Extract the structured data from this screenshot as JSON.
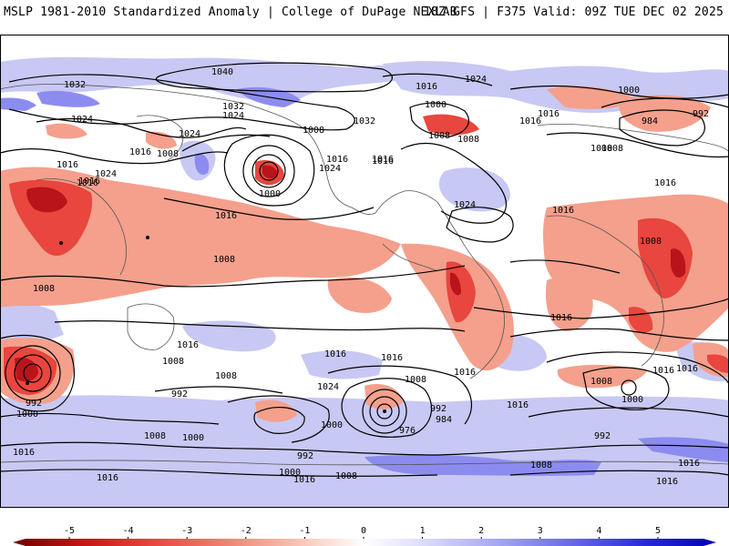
{
  "header": {
    "title_left": "MSLP 1981-2010 Standardized Anomaly | College of DuPage NEXLAB",
    "title_right": "18Z GFS | F375 Valid: 09Z TUE DEC 02 2025"
  },
  "map": {
    "isobar_labels": [
      "1040",
      "1032",
      "1024",
      "1032",
      "1024",
      "1008",
      "1032",
      "1016",
      "1016",
      "1024",
      "1016",
      "1024",
      "1016",
      "1000",
      "1016",
      "1008",
      "1024",
      "1016",
      "1008",
      "1008",
      "1008",
      "1016",
      "1016",
      "1024",
      "1000",
      "1024",
      "1000",
      "1016",
      "1016",
      "992",
      "984",
      "1008",
      "1016",
      "1016",
      "1008",
      "1008",
      "1008",
      "1016",
      "1008",
      "1016",
      "1016",
      "1016",
      "1016",
      "1016",
      "1008",
      "1024",
      "1016",
      "992",
      "1000",
      "992",
      "984",
      "976",
      "1000",
      "1008",
      "1008",
      "992",
      "1016",
      "1000",
      "992",
      "1000",
      "1008",
      "1016",
      "1016",
      "1008",
      "1016",
      "1000",
      "1016",
      "1008",
      "1016",
      "992",
      "1016"
    ],
    "colors": {
      "neg_strong": "#b8141a",
      "neg_med": "#e8463e",
      "neg_light": "#f4a08c",
      "neutral": "#ffffff",
      "pos_light": "#c8c8f4",
      "pos_med": "#8c8cf0",
      "pos_strong": "#3c3ce0"
    }
  },
  "colorbar": {
    "ticks": [
      "-5",
      "-4",
      "-3",
      "-2",
      "-1",
      "0",
      "1",
      "2",
      "3",
      "4",
      "5"
    ],
    "stops": [
      "#6e0000",
      "#c81414",
      "#e8463e",
      "#f08070",
      "#f8c0b0",
      "#ffffff",
      "#d4d4fa",
      "#a0a0f4",
      "#6464ec",
      "#2828dc",
      "#0000b4"
    ]
  }
}
